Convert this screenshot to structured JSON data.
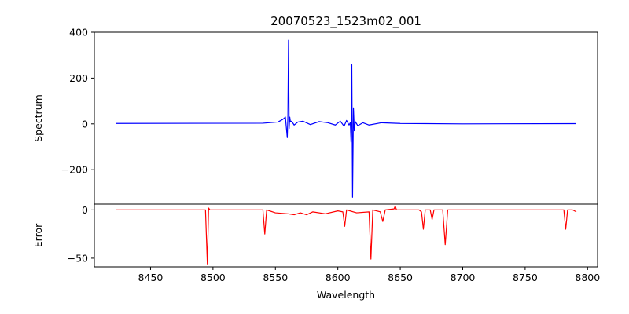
{
  "chart_data": [
    {
      "type": "line",
      "title": "20070523_1523m02_001",
      "xlabel": "",
      "ylabel": "Spectrum",
      "xlim": [
        8405,
        8808
      ],
      "ylim": [
        -350,
        400
      ],
      "yticks": [
        -200,
        0,
        200,
        400
      ],
      "yticklabels": [
        "−200",
        "0",
        "200",
        "400"
      ],
      "series": [
        {
          "name": "Spectrum",
          "color": "#0000ff",
          "x": [
            8422,
            8540,
            8552,
            8556,
            8558,
            8559.5,
            8560,
            8560.5,
            8561,
            8561.5,
            8562,
            8563,
            8565,
            8568,
            8572,
            8578,
            8585,
            8592,
            8598,
            8602,
            8605,
            8607,
            8609,
            8610,
            8610.6,
            8611.2,
            8611.8,
            8612.5,
            8613.2,
            8614,
            8616,
            8620,
            8625,
            8635,
            8650,
            8700,
            8791
          ],
          "y": [
            2,
            3,
            8,
            20,
            30,
            -60,
            35,
            365,
            -20,
            30,
            10,
            12,
            -5,
            8,
            12,
            -3,
            10,
            5,
            -5,
            12,
            -10,
            15,
            -5,
            5,
            -80,
            258,
            -320,
            70,
            -30,
            10,
            -8,
            5,
            -5,
            5,
            2,
            0,
            1
          ]
        }
      ]
    },
    {
      "type": "line",
      "title": "",
      "xlabel": "Wavelength",
      "ylabel": "Error",
      "xlim": [
        8405,
        8808
      ],
      "ylim": [
        -59,
        6
      ],
      "xticks": [
        8450,
        8500,
        8550,
        8600,
        8650,
        8700,
        8750,
        8800
      ],
      "xticklabels": [
        "8450",
        "8500",
        "8550",
        "8600",
        "8650",
        "8700",
        "8750",
        "8800"
      ],
      "yticks": [
        -50,
        0
      ],
      "yticklabels": [
        "−50",
        "0"
      ],
      "series": [
        {
          "name": "Error",
          "color": "#ff0000",
          "x": [
            8422,
            8494,
            8495.5,
            8496.5,
            8497.5,
            8540,
            8541.5,
            8543,
            8550,
            8560,
            8565,
            8570,
            8575,
            8580,
            8590,
            8600,
            8604,
            8605.5,
            8607,
            8615,
            8625,
            8626.5,
            8628,
            8634,
            8636,
            8638,
            8645,
            8646,
            8647,
            8665,
            8667,
            8668.5,
            8670,
            8674,
            8675.5,
            8677,
            8684,
            8686,
            8688,
            8700,
            8720,
            8781,
            8782.5,
            8784,
            8788,
            8791
          ],
          "y": [
            0,
            0,
            -56,
            2,
            0,
            0,
            -25,
            0,
            -3,
            -4,
            -5,
            -3,
            -5,
            -2,
            -4,
            -1,
            -2,
            -17,
            0,
            -3,
            -2,
            -51,
            0,
            -2,
            -12,
            0,
            1,
            4,
            0,
            0,
            -2,
            -20,
            0,
            0,
            -10,
            0,
            0,
            -36,
            0,
            0,
            0,
            0,
            -20,
            0,
            0,
            -2
          ]
        }
      ]
    }
  ]
}
